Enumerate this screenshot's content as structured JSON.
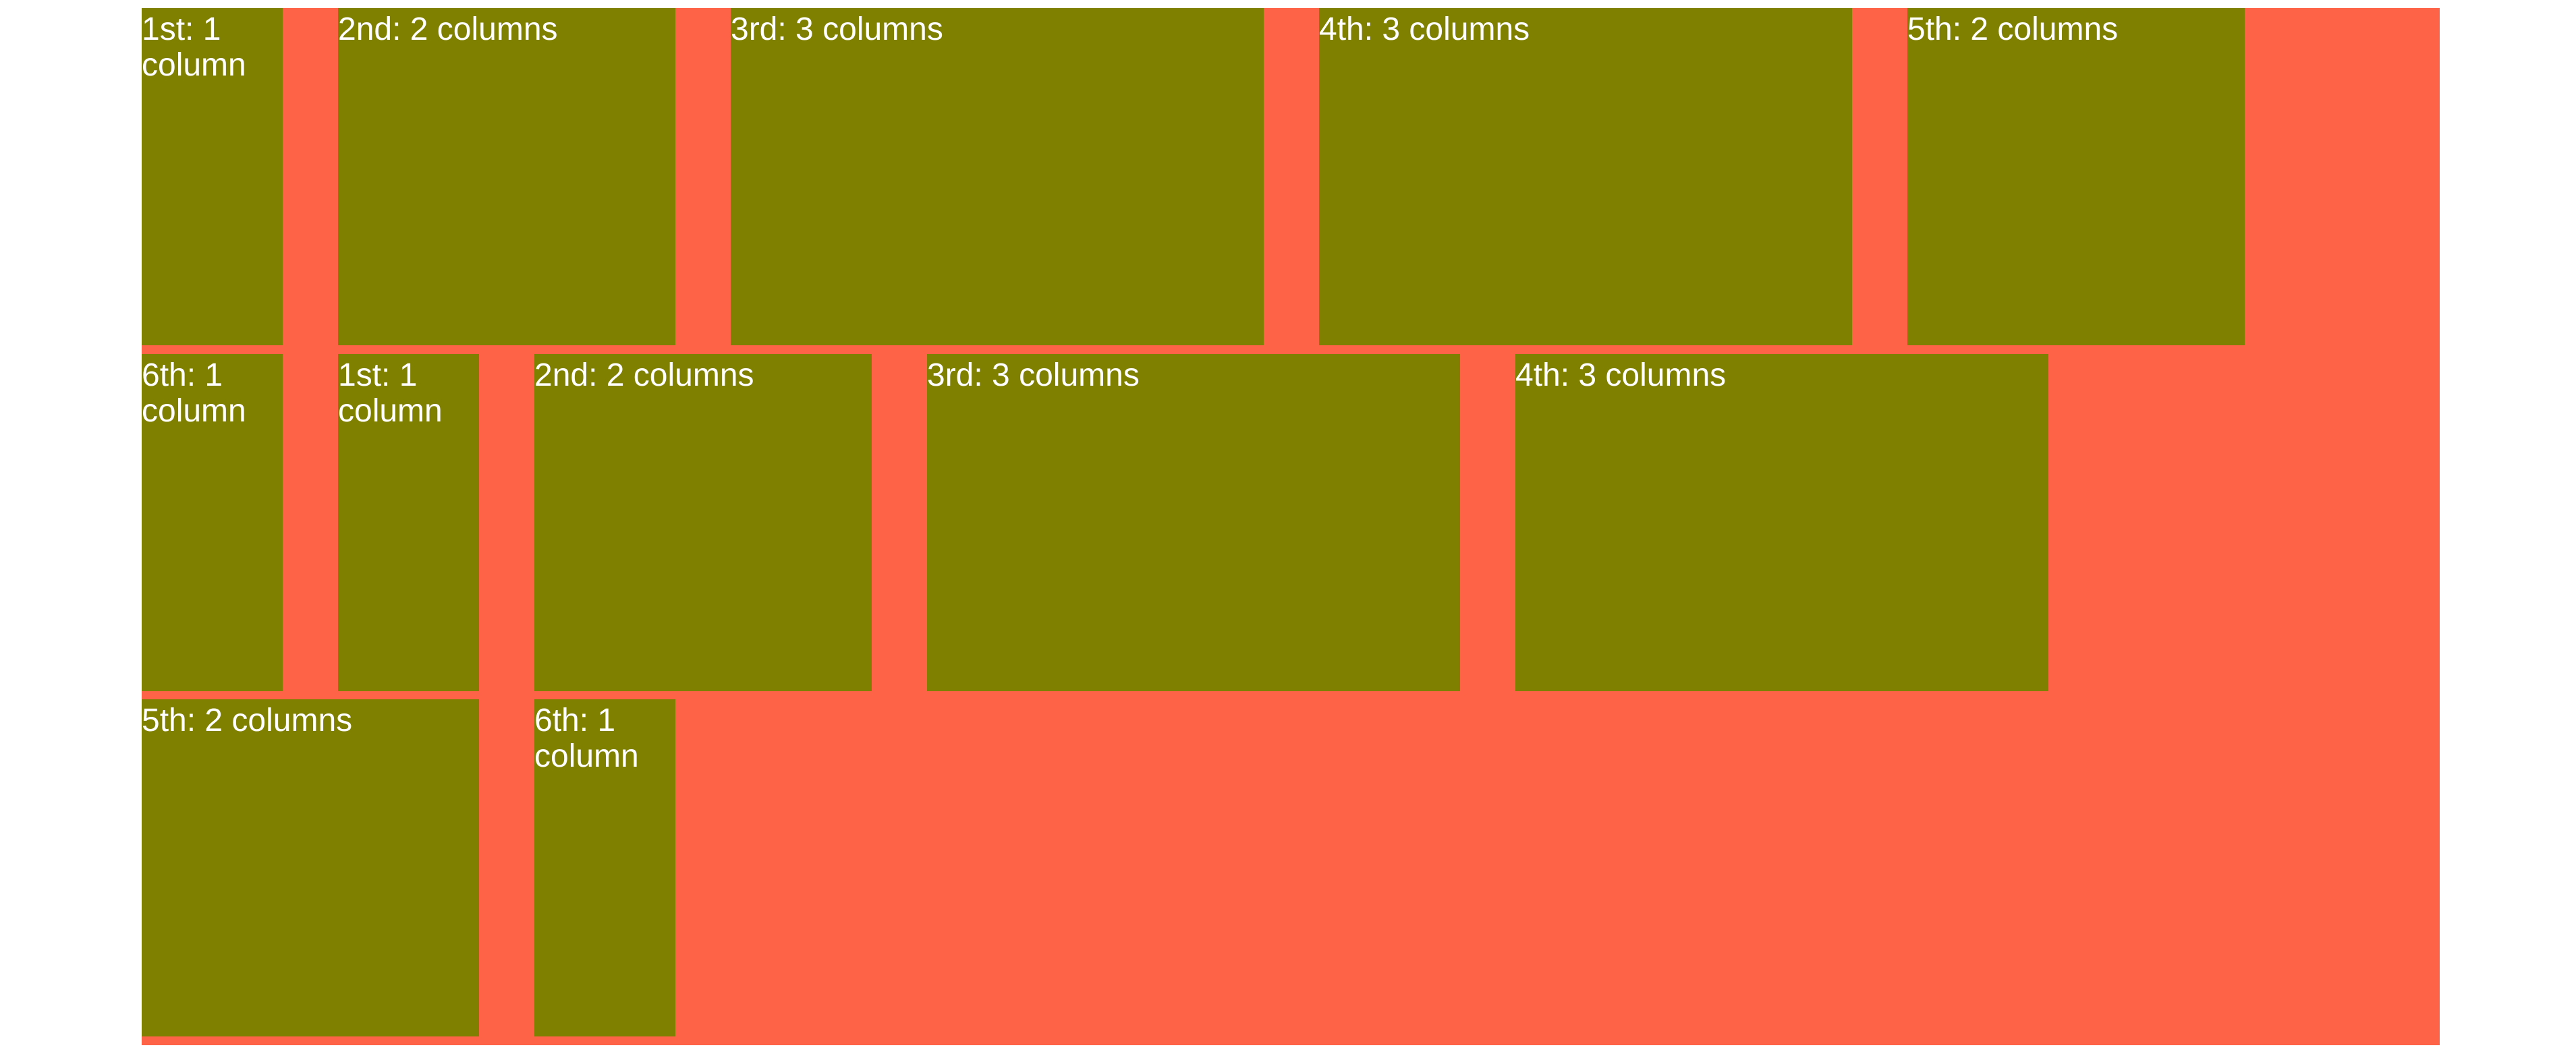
{
  "colors": {
    "container_background": "#ff6347",
    "item_background": "#808000",
    "item_text": "#ffffff",
    "page_background": "#ffffff"
  },
  "rows": [
    {
      "items": [
        {
          "label": "1st: 1 column"
        },
        {
          "label": "2nd: 2 columns"
        },
        {
          "label": "3rd: 3 columns"
        },
        {
          "label": "4th: 3 columns"
        },
        {
          "label": "5th: 2 columns"
        }
      ]
    },
    {
      "items": [
        {
          "label": "6th: 1 column"
        },
        {
          "label": "1st: 1 column"
        },
        {
          "label": "2nd: 2 columns"
        },
        {
          "label": "3rd: 3 columns"
        },
        {
          "label": "4th: 3 columns"
        }
      ]
    },
    {
      "items": [
        {
          "label": "5th: 2 columns"
        },
        {
          "label": "6th: 1 column"
        }
      ]
    }
  ]
}
